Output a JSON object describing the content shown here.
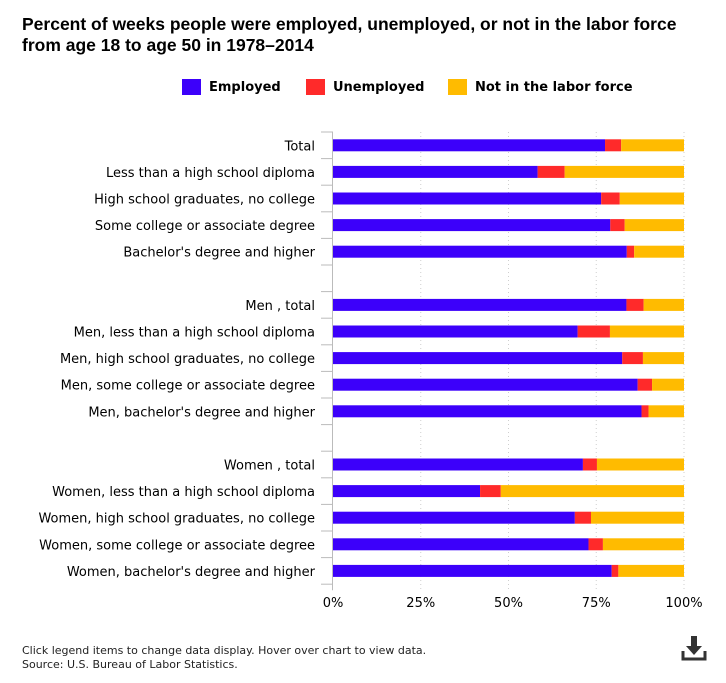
{
  "title": "Percent of weeks people were employed, unemployed, or not in the labor force from age 18 to age 50 in 1978–2014",
  "legend": [
    {
      "name": "Employed",
      "color": "#3C00FA"
    },
    {
      "name": "Unemployed",
      "color": "#FF2A2A"
    },
    {
      "name": "Not in the labor force",
      "color": "#FFBB00"
    }
  ],
  "footer": {
    "note": "Click legend items to change data display. Hover over chart to view data.",
    "source": "Source: U.S. Bureau of Labor Statistics."
  },
  "download_icon": "download-icon",
  "chart_data": {
    "type": "bar",
    "orientation": "horizontal",
    "stacked": true,
    "title": "Percent of weeks people were employed, unemployed, or not in the labor force from age 18 to age 50 in 1978–2014",
    "xlabel": "",
    "ylabel": "",
    "xlim": [
      0,
      100
    ],
    "x_ticks": [
      "0%",
      "25%",
      "50%",
      "75%",
      "100%"
    ],
    "grid": true,
    "legend_position": "top-center",
    "categories": [
      "Total",
      "Less than a high school diploma",
      "High school graduates, no college",
      "Some college or associate degree",
      "Bachelor's degree and higher",
      "",
      "Men , total",
      "Men, less than a high school diploma",
      "Men, high school graduates, no college",
      "Men, some college or associate degree",
      "Men, bachelor's degree and higher",
      "",
      "Women , total",
      "Women, less than a high school diploma",
      "Women, high school graduates, no college",
      "Women, some college or associate degree",
      "Women, bachelor's degree and higher"
    ],
    "series": [
      {
        "name": "Employed",
        "color": "#3C00FA",
        "values": [
          77.5,
          58.3,
          76.4,
          79.0,
          83.7,
          null,
          83.6,
          69.7,
          82.4,
          86.8,
          87.9,
          null,
          71.2,
          41.9,
          68.9,
          72.8,
          79.4
        ]
      },
      {
        "name": "Unemployed",
        "color": "#FF2A2A",
        "values": [
          4.6,
          7.7,
          5.3,
          4.1,
          2.1,
          null,
          4.9,
          9.2,
          5.9,
          4.1,
          2.0,
          null,
          4.0,
          5.9,
          4.6,
          4.1,
          1.9
        ]
      },
      {
        "name": "Not in the labor force",
        "color": "#FFBB00",
        "values": [
          17.9,
          34.0,
          18.3,
          16.9,
          14.2,
          null,
          11.5,
          21.1,
          11.7,
          9.1,
          10.1,
          null,
          24.8,
          52.2,
          26.5,
          23.1,
          18.7
        ]
      }
    ]
  }
}
